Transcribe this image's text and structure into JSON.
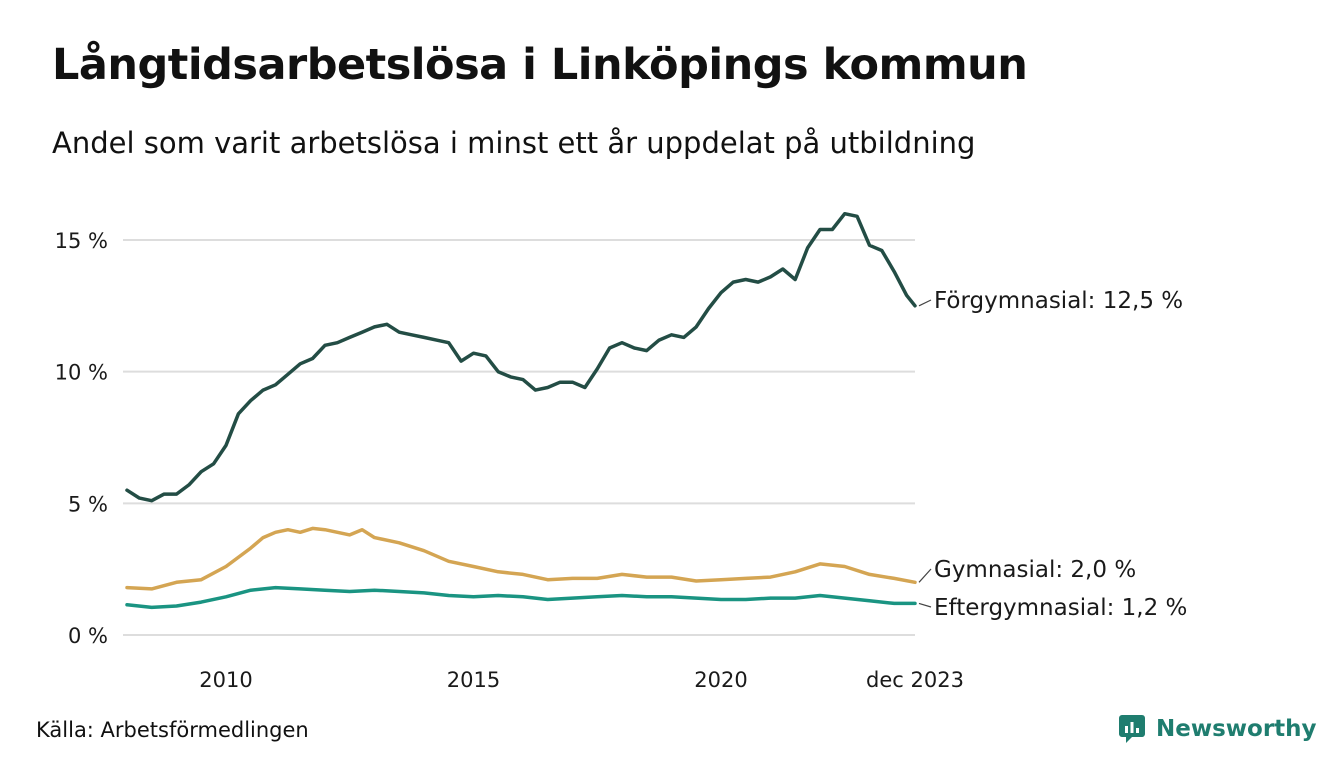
{
  "header": {
    "title": "Långtidsarbetslösa i Linköpings kommun",
    "subtitle": "Andel som varit arbetslösa i minst ett år uppdelat på utbildning"
  },
  "footer": {
    "source": "Källa: Arbetsförmedlingen",
    "brand": "Newsworthy"
  },
  "chart_data": {
    "type": "line",
    "title": "Långtidsarbetslösa i Linköpings kommun",
    "subtitle": "Andel som varit arbetslösa i minst ett år uppdelat på utbildning",
    "xlabel": "",
    "ylabel": "",
    "x_ticks": [
      "2010",
      "2015",
      "2020",
      "dec 2023"
    ],
    "x_tick_values": [
      2010,
      2015,
      2020,
      2023.92
    ],
    "y_ticks": [
      "0 %",
      "5 %",
      "10 %",
      "15 %"
    ],
    "y_tick_values": [
      0,
      5,
      10,
      15
    ],
    "xlim": [
      2008.0,
      2023.92
    ],
    "ylim": [
      0,
      16
    ],
    "grid": true,
    "colors": {
      "forgymnasial": "#234d45",
      "gymnasial": "#d4a553",
      "eftergymnasial": "#1a9482",
      "grid": "#dddddd",
      "brand": "#1f7d6f"
    },
    "series": [
      {
        "key": "forgymnasial",
        "name": "Förgymnasial",
        "end_label": "Förgymnasial: 12,5 %",
        "points": [
          [
            2008.0,
            5.5
          ],
          [
            2008.25,
            5.2
          ],
          [
            2008.5,
            5.1
          ],
          [
            2008.75,
            5.35
          ],
          [
            2009.0,
            5.35
          ],
          [
            2009.25,
            5.7
          ],
          [
            2009.5,
            6.2
          ],
          [
            2009.75,
            6.5
          ],
          [
            2010.0,
            7.2
          ],
          [
            2010.25,
            8.4
          ],
          [
            2010.5,
            8.9
          ],
          [
            2010.75,
            9.3
          ],
          [
            2011.0,
            9.5
          ],
          [
            2011.25,
            9.9
          ],
          [
            2011.5,
            10.3
          ],
          [
            2011.75,
            10.5
          ],
          [
            2012.0,
            11.0
          ],
          [
            2012.25,
            11.1
          ],
          [
            2012.5,
            11.3
          ],
          [
            2012.75,
            11.5
          ],
          [
            2013.0,
            11.7
          ],
          [
            2013.25,
            11.8
          ],
          [
            2013.5,
            11.5
          ],
          [
            2013.75,
            11.4
          ],
          [
            2014.0,
            11.3
          ],
          [
            2014.25,
            11.2
          ],
          [
            2014.5,
            11.1
          ],
          [
            2014.75,
            10.4
          ],
          [
            2015.0,
            10.7
          ],
          [
            2015.25,
            10.6
          ],
          [
            2015.5,
            10.0
          ],
          [
            2015.75,
            9.8
          ],
          [
            2016.0,
            9.7
          ],
          [
            2016.25,
            9.3
          ],
          [
            2016.5,
            9.4
          ],
          [
            2016.75,
            9.6
          ],
          [
            2017.0,
            9.6
          ],
          [
            2017.25,
            9.4
          ],
          [
            2017.5,
            10.1
          ],
          [
            2017.75,
            10.9
          ],
          [
            2018.0,
            11.1
          ],
          [
            2018.25,
            10.9
          ],
          [
            2018.5,
            10.8
          ],
          [
            2018.75,
            11.2
          ],
          [
            2019.0,
            11.4
          ],
          [
            2019.25,
            11.3
          ],
          [
            2019.5,
            11.7
          ],
          [
            2019.75,
            12.4
          ],
          [
            2020.0,
            13.0
          ],
          [
            2020.25,
            13.4
          ],
          [
            2020.5,
            13.5
          ],
          [
            2020.75,
            13.4
          ],
          [
            2021.0,
            13.6
          ],
          [
            2021.25,
            13.9
          ],
          [
            2021.5,
            13.5
          ],
          [
            2021.75,
            14.7
          ],
          [
            2022.0,
            15.4
          ],
          [
            2022.25,
            15.4
          ],
          [
            2022.5,
            16.0
          ],
          [
            2022.75,
            15.9
          ],
          [
            2023.0,
            14.8
          ],
          [
            2023.25,
            14.6
          ],
          [
            2023.5,
            13.8
          ],
          [
            2023.75,
            12.9
          ],
          [
            2023.92,
            12.5
          ]
        ]
      },
      {
        "key": "gymnasial",
        "name": "Gymnasial",
        "end_label": "Gymnasial:  2,0 %",
        "points": [
          [
            2008.0,
            1.8
          ],
          [
            2008.5,
            1.75
          ],
          [
            2009.0,
            2.0
          ],
          [
            2009.5,
            2.1
          ],
          [
            2010.0,
            2.6
          ],
          [
            2010.5,
            3.3
          ],
          [
            2010.75,
            3.7
          ],
          [
            2011.0,
            3.9
          ],
          [
            2011.25,
            4.0
          ],
          [
            2011.5,
            3.9
          ],
          [
            2011.75,
            4.05
          ],
          [
            2012.0,
            4.0
          ],
          [
            2012.25,
            3.9
          ],
          [
            2012.5,
            3.8
          ],
          [
            2012.75,
            4.0
          ],
          [
            2013.0,
            3.7
          ],
          [
            2013.5,
            3.5
          ],
          [
            2014.0,
            3.2
          ],
          [
            2014.5,
            2.8
          ],
          [
            2015.0,
            2.6
          ],
          [
            2015.5,
            2.4
          ],
          [
            2016.0,
            2.3
          ],
          [
            2016.5,
            2.1
          ],
          [
            2017.0,
            2.15
          ],
          [
            2017.5,
            2.15
          ],
          [
            2018.0,
            2.3
          ],
          [
            2018.5,
            2.2
          ],
          [
            2019.0,
            2.2
          ],
          [
            2019.5,
            2.05
          ],
          [
            2020.0,
            2.1
          ],
          [
            2020.5,
            2.15
          ],
          [
            2021.0,
            2.2
          ],
          [
            2021.5,
            2.4
          ],
          [
            2022.0,
            2.7
          ],
          [
            2022.5,
            2.6
          ],
          [
            2023.0,
            2.3
          ],
          [
            2023.5,
            2.15
          ],
          [
            2023.92,
            2.0
          ]
        ]
      },
      {
        "key": "eftergymnasial",
        "name": "Eftergymnasial",
        "end_label": "Eftergymnasial:  1,2 %",
        "points": [
          [
            2008.0,
            1.15
          ],
          [
            2008.5,
            1.05
          ],
          [
            2009.0,
            1.1
          ],
          [
            2009.5,
            1.25
          ],
          [
            2010.0,
            1.45
          ],
          [
            2010.5,
            1.7
          ],
          [
            2011.0,
            1.8
          ],
          [
            2011.5,
            1.75
          ],
          [
            2012.0,
            1.7
          ],
          [
            2012.5,
            1.65
          ],
          [
            2013.0,
            1.7
          ],
          [
            2013.5,
            1.65
          ],
          [
            2014.0,
            1.6
          ],
          [
            2014.5,
            1.5
          ],
          [
            2015.0,
            1.45
          ],
          [
            2015.5,
            1.5
          ],
          [
            2016.0,
            1.45
          ],
          [
            2016.5,
            1.35
          ],
          [
            2017.0,
            1.4
          ],
          [
            2017.5,
            1.45
          ],
          [
            2018.0,
            1.5
          ],
          [
            2018.5,
            1.45
          ],
          [
            2019.0,
            1.45
          ],
          [
            2019.5,
            1.4
          ],
          [
            2020.0,
            1.35
          ],
          [
            2020.5,
            1.35
          ],
          [
            2021.0,
            1.4
          ],
          [
            2021.5,
            1.4
          ],
          [
            2022.0,
            1.5
          ],
          [
            2022.5,
            1.4
          ],
          [
            2023.0,
            1.3
          ],
          [
            2023.5,
            1.2
          ],
          [
            2023.92,
            1.2
          ]
        ]
      }
    ]
  }
}
